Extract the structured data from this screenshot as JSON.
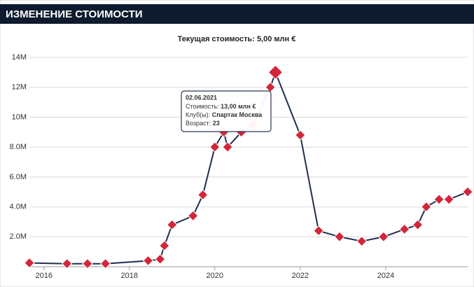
{
  "header": {
    "title": "ИЗМЕНЕНИЕ СТОИМОСТИ"
  },
  "chart_data": {
    "type": "line",
    "title": "Текущая стоимость: 5,00 млн €",
    "x": [
      2015.66,
      2016.54,
      2017.02,
      2017.44,
      2018.44,
      2018.72,
      2018.82,
      2019.0,
      2019.49,
      2019.72,
      2020.0,
      2020.21,
      2020.3,
      2020.62,
      2020.9,
      2021.3,
      2021.42,
      2022.0,
      2022.43,
      2022.92,
      2023.44,
      2023.95,
      2024.44,
      2024.75,
      2024.95,
      2025.25,
      2025.48,
      2025.92
    ],
    "series": [
      {
        "name": "Стоимость",
        "color": "#1f2f4c",
        "values": [
          0.25,
          0.2,
          0.2,
          0.2,
          0.4,
          0.5,
          1.4,
          2.8,
          3.4,
          4.8,
          8.0,
          9.0,
          8.0,
          9.0,
          9.5,
          12.0,
          13.0,
          8.8,
          2.4,
          2.0,
          1.7,
          2.0,
          2.5,
          2.8,
          4.0,
          4.5,
          4.5,
          5.0
        ]
      }
    ],
    "marker_color": "#d3263a",
    "xlim": [
      2015.66,
      2025.92
    ],
    "ylim": [
      0,
      14
    ],
    "xticks": [
      2016,
      2018,
      2020,
      2022,
      2024
    ],
    "yticks": [
      {
        "value": 2,
        "label": "2.0M"
      },
      {
        "value": 4,
        "label": "4.0M"
      },
      {
        "value": 6,
        "label": "6.0M"
      },
      {
        "value": 8,
        "label": "8.0M"
      },
      {
        "value": 10,
        "label": "10M"
      },
      {
        "value": 12,
        "label": "12M"
      },
      {
        "value": 14,
        "label": "14M"
      }
    ],
    "grid": true,
    "tooltip": {
      "point": 16,
      "date": "02.06.2021",
      "lines": [
        {
          "label": "Стоимость:",
          "value": "13,00 млн €"
        },
        {
          "label": "Клуб(ы):",
          "value": "Спартак Москва"
        },
        {
          "label": "Возраст:",
          "value": "23"
        }
      ]
    }
  }
}
